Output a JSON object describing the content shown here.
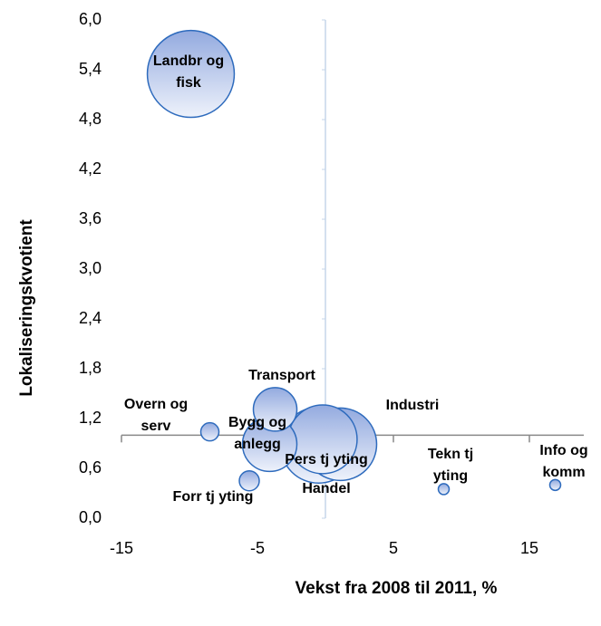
{
  "chart_data": {
    "type": "bubble",
    "x_label": "Vekst fra 2008 til 2011, %",
    "y_label": "Lokaliseringskvotient",
    "xlim": [
      -15,
      19
    ],
    "xticks": [
      -15,
      -5,
      5,
      15
    ],
    "ylim": [
      0,
      6
    ],
    "yticks": [
      {
        "value": 0,
        "label": "0,0"
      },
      {
        "value": 0.6,
        "label": "0,6"
      },
      {
        "value": 1.2,
        "label": "1,2"
      },
      {
        "value": 1.8,
        "label": "1,8"
      },
      {
        "value": 2.4,
        "label": "2,4"
      },
      {
        "value": 3.0,
        "label": "3,0"
      },
      {
        "value": 3.6,
        "label": "3,6"
      },
      {
        "value": 4.2,
        "label": "4,2"
      },
      {
        "value": 4.8,
        "label": "4,8"
      },
      {
        "value": 5.4,
        "label": "5,4"
      },
      {
        "value": 6.0,
        "label": "6,0"
      }
    ],
    "x_axis_crosses_y": 1,
    "y_axis_crosses_x": 0,
    "color": "#2e6bbd",
    "labels": [
      [
        "Landbr og",
        "fisk"
      ],
      [
        "Overn og",
        "serv"
      ],
      [
        "Transport"
      ],
      [
        "Bygg og",
        "anlegg"
      ],
      [
        "Forr tj yting"
      ],
      [
        "Industri"
      ],
      [
        "Handel"
      ],
      [
        "Pers tj yting"
      ],
      [
        "Tekn tj",
        "yting"
      ],
      [
        "Info og",
        "komm"
      ]
    ],
    "x": [
      -9.9,
      -8.5,
      -3.7,
      -4.1,
      -5.6,
      1.1,
      -0.5,
      -0.2,
      8.7,
      16.9
    ],
    "y": [
      5.35,
      1.04,
      1.31,
      0.89,
      0.45,
      0.89,
      0.88,
      0.95,
      0.35,
      0.4
    ],
    "sizes": [
      2300,
      100,
      576,
      900,
      121,
      1600,
      1760,
      1440,
      36,
      36
    ]
  }
}
